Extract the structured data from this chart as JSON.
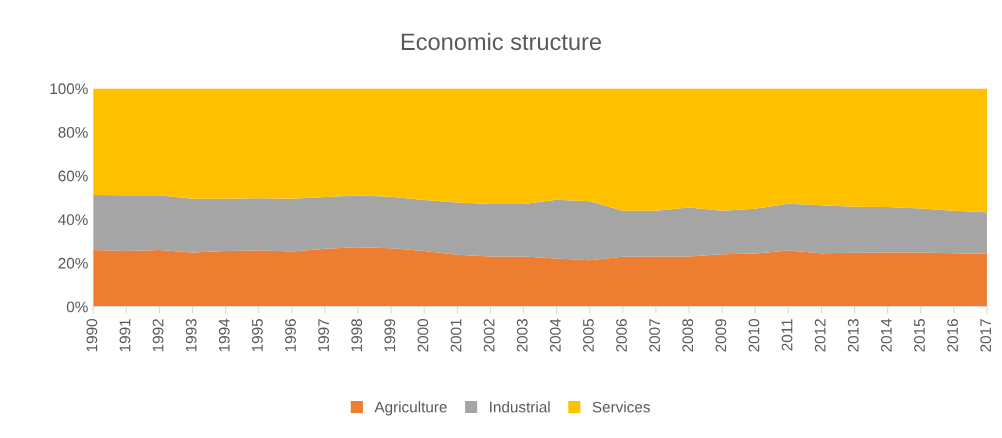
{
  "chart_data": {
    "type": "area",
    "stacked": true,
    "title": "Economic structure",
    "categories": [
      "1990",
      "1991",
      "1992",
      "1993",
      "1994",
      "1995",
      "1996",
      "1997",
      "1998",
      "1999",
      "2000",
      "2001",
      "2002",
      "2003",
      "2004",
      "2005",
      "2006",
      "2007",
      "2008",
      "2009",
      "2010",
      "2011",
      "2012",
      "2013",
      "2014",
      "2015",
      "2016",
      "2017"
    ],
    "series": [
      {
        "name": "Agriculture",
        "color": "#ed7d31",
        "values": [
          26,
          25.5,
          26,
          24.8,
          25.5,
          25.8,
          25.3,
          26.5,
          27.2,
          26.8,
          25.5,
          23.8,
          23,
          23,
          22,
          21.3,
          22.8,
          23,
          23,
          24,
          24.3,
          25.7,
          24.5,
          24.7,
          24.8,
          24.8,
          24.5,
          24.2
        ]
      },
      {
        "name": "Industrial",
        "color": "#a5a5a5",
        "values": [
          25.2,
          25.5,
          25,
          24.7,
          24,
          23.9,
          24.2,
          23.7,
          23.7,
          23.6,
          23.4,
          23.9,
          24,
          24,
          27,
          27,
          21.2,
          21,
          22.4,
          20,
          20.6,
          21.5,
          22,
          21.1,
          20.9,
          20.2,
          19.5,
          19
        ]
      },
      {
        "name": "Services",
        "color": "#ffc000",
        "values": [
          48.8,
          49,
          49,
          50.5,
          50.5,
          50.3,
          50.5,
          49.8,
          49.1,
          49.6,
          51.1,
          52.3,
          53,
          53,
          51,
          51.7,
          56,
          56,
          54.6,
          56,
          55.1,
          52.8,
          53.5,
          54.2,
          54.3,
          55,
          56,
          56.8
        ]
      }
    ],
    "ylim": [
      0,
      100
    ],
    "yticks": [
      {
        "value": 0,
        "label": "0%"
      },
      {
        "value": 20,
        "label": "20%"
      },
      {
        "value": 40,
        "label": "40%"
      },
      {
        "value": 60,
        "label": "60%"
      },
      {
        "value": 80,
        "label": "80%"
      },
      {
        "value": 100,
        "label": "100%"
      }
    ],
    "legend": "bottom",
    "grid": false
  }
}
